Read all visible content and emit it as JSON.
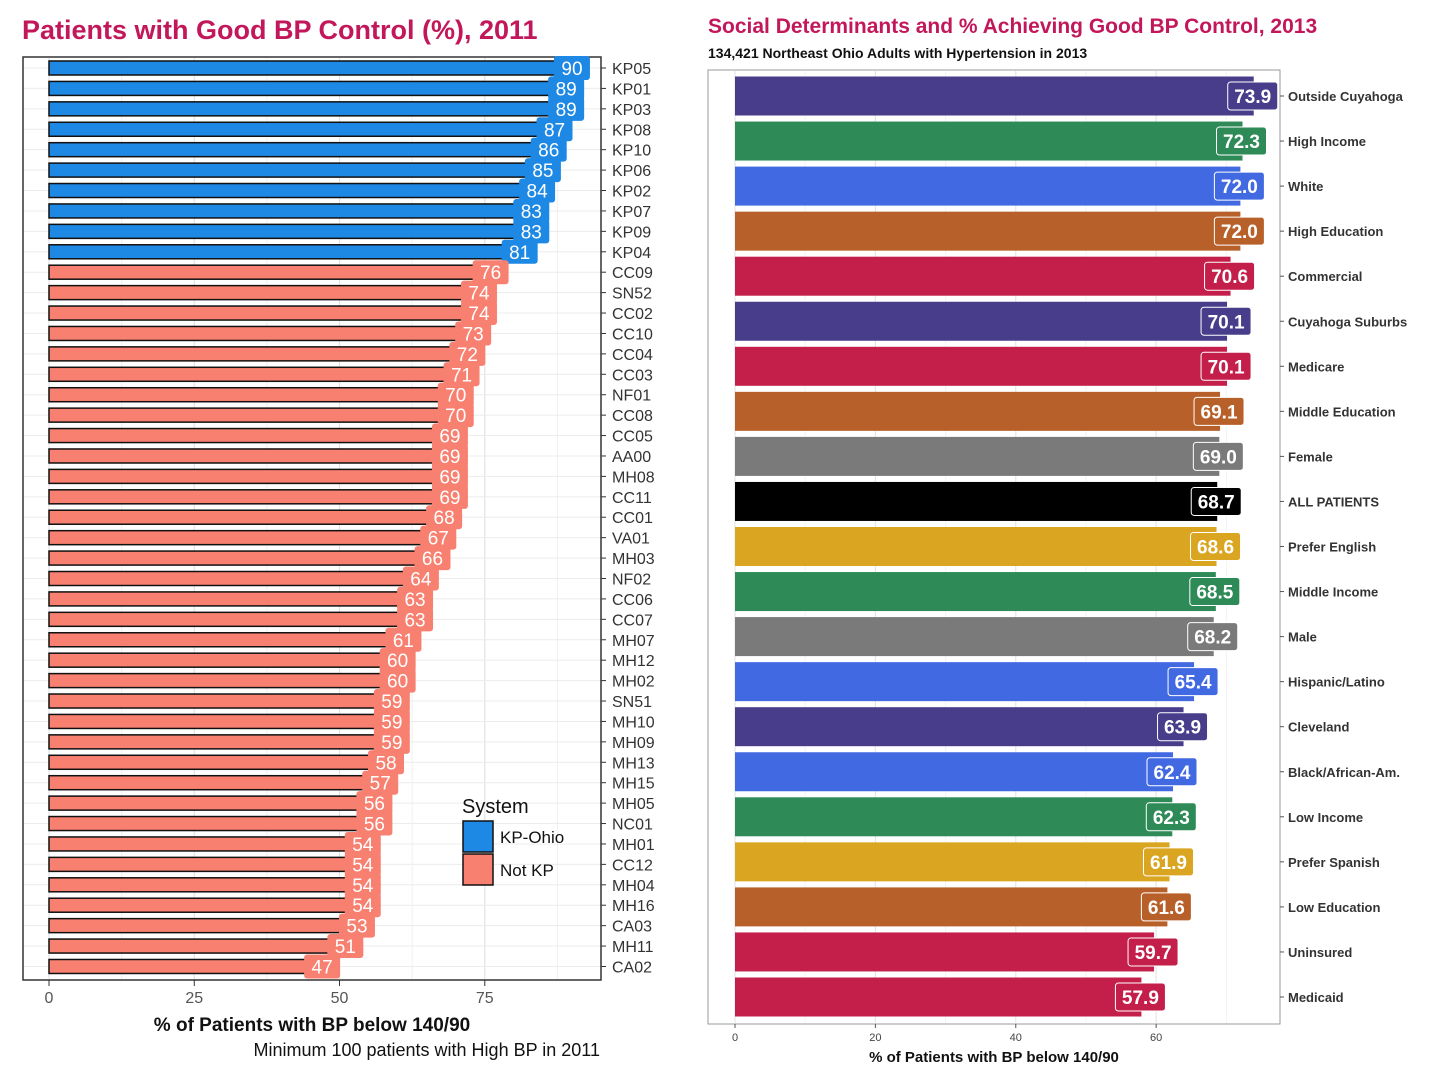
{
  "colors": {
    "title": "#c2185b",
    "kp_ohio": "#1e88e5",
    "not_kp": "#f88070"
  },
  "chart_data": [
    {
      "type": "bar",
      "orientation": "horizontal",
      "title": "Patients with Good BP Control (%), 2011",
      "xlabel": "% of Patients with BP below 140/90",
      "caption": "Minimum 100 patients with High BP in 2011",
      "xlim": [
        0,
        95
      ],
      "xticks": [
        0,
        25,
        50,
        75
      ],
      "grid": true,
      "legend": {
        "title": "System",
        "position": "bottom-right",
        "entries": [
          "KP-Ohio",
          "Not KP"
        ]
      },
      "categories": [
        "KP05",
        "KP01",
        "KP03",
        "KP08",
        "KP10",
        "KP06",
        "KP02",
        "KP07",
        "KP09",
        "KP04",
        "CC09",
        "SN52",
        "CC02",
        "CC10",
        "CC04",
        "CC03",
        "NF01",
        "CC08",
        "CC05",
        "AA00",
        "MH08",
        "CC11",
        "CC01",
        "VA01",
        "MH03",
        "NF02",
        "CC06",
        "CC07",
        "MH07",
        "MH12",
        "MH02",
        "SN51",
        "MH10",
        "MH09",
        "MH13",
        "MH15",
        "MH05",
        "NC01",
        "MH01",
        "CC12",
        "MH04",
        "MH16",
        "CA03",
        "MH11",
        "CA02"
      ],
      "values": [
        90,
        89,
        89,
        87,
        86,
        85,
        84,
        83,
        83,
        81,
        76,
        74,
        74,
        73,
        72,
        71,
        70,
        70,
        69,
        69,
        69,
        69,
        68,
        67,
        66,
        64,
        63,
        63,
        61,
        60,
        60,
        59,
        59,
        59,
        58,
        57,
        56,
        56,
        54,
        54,
        54,
        54,
        53,
        51,
        47
      ],
      "groups": [
        "KP-Ohio",
        "KP-Ohio",
        "KP-Ohio",
        "KP-Ohio",
        "KP-Ohio",
        "KP-Ohio",
        "KP-Ohio",
        "KP-Ohio",
        "KP-Ohio",
        "KP-Ohio",
        "Not KP",
        "Not KP",
        "Not KP",
        "Not KP",
        "Not KP",
        "Not KP",
        "Not KP",
        "Not KP",
        "Not KP",
        "Not KP",
        "Not KP",
        "Not KP",
        "Not KP",
        "Not KP",
        "Not KP",
        "Not KP",
        "Not KP",
        "Not KP",
        "Not KP",
        "Not KP",
        "Not KP",
        "Not KP",
        "Not KP",
        "Not KP",
        "Not KP",
        "Not KP",
        "Not KP",
        "Not KP",
        "Not KP",
        "Not KP",
        "Not KP",
        "Not KP",
        "Not KP",
        "Not KP",
        "Not KP"
      ]
    },
    {
      "type": "bar",
      "orientation": "horizontal",
      "title": "Social Determinants and % Achieving Good BP Control, 2013",
      "subtitle": "134,421 Northeast Ohio Adults with Hypertension in 2013",
      "xlabel": "% of Patients with BP below 140/90",
      "xlim": [
        0,
        77.5
      ],
      "xticks": [
        0,
        20,
        40,
        60
      ],
      "grid": true,
      "categories": [
        "Outside Cuyahoga",
        "High Income",
        "White",
        "High Education",
        "Commercial",
        "Cuyahoga Suburbs",
        "Medicare",
        "Middle Education",
        "Female",
        "ALL PATIENTS",
        "Prefer English",
        "Middle Income",
        "Male",
        "Hispanic/Latino",
        "Cleveland",
        "Black/African-Am.",
        "Low Income",
        "Prefer Spanish",
        "Low Education",
        "Uninsured",
        "Medicaid"
      ],
      "values": [
        73.9,
        72.3,
        72.0,
        72.0,
        70.6,
        70.1,
        70.1,
        69.1,
        69.0,
        68.7,
        68.6,
        68.5,
        68.2,
        65.4,
        63.9,
        62.4,
        62.3,
        61.9,
        61.6,
        59.7,
        57.9
      ],
      "value_labels": [
        "73.9",
        "72.3",
        "72.0",
        "72.0",
        "70.6",
        "70.1",
        "70.1",
        "69.1",
        "69.0",
        "68.7",
        "68.6",
        "68.5",
        "68.2",
        "65.4",
        "63.9",
        "62.4",
        "62.3",
        "61.9",
        "61.6",
        "59.7",
        "57.9"
      ],
      "bar_colors": [
        "#483d8b",
        "#2e8b57",
        "#4169e1",
        "#b8602a",
        "#c41e4a",
        "#483d8b",
        "#c41e4a",
        "#b8602a",
        "#7a7a7a",
        "#000000",
        "#daa520",
        "#2e8b57",
        "#7a7a7a",
        "#4169e1",
        "#483d8b",
        "#4169e1",
        "#2e8b57",
        "#daa520",
        "#b8602a",
        "#c41e4a",
        "#c41e4a"
      ]
    }
  ]
}
